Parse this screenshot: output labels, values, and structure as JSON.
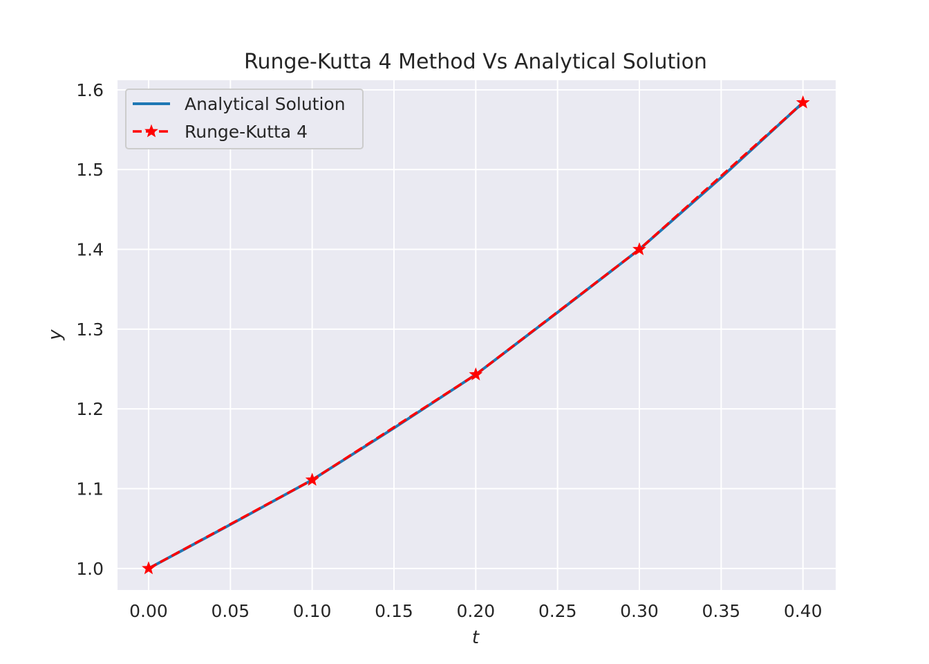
{
  "chart_data": {
    "type": "line",
    "title": "Runge-Kutta 4 Method Vs Analytical Solution",
    "xlabel": "t",
    "ylabel": "y",
    "xlim": [
      -0.019,
      0.42
    ],
    "ylim": [
      0.973,
      1.612
    ],
    "x_ticks": [
      "0.00",
      "0.05",
      "0.10",
      "0.15",
      "0.20",
      "0.25",
      "0.30",
      "0.35",
      "0.40"
    ],
    "y_ticks": [
      "1.0",
      "1.1",
      "1.2",
      "1.3",
      "1.4",
      "1.5",
      "1.6"
    ],
    "grid": true,
    "legend_position": "top-left",
    "background": "#eaeaf2",
    "series": [
      {
        "name": "Analytical Solution",
        "color": "#1f77b4",
        "style": "solid",
        "x": [
          0.0,
          0.05,
          0.1,
          0.15,
          0.2,
          0.25,
          0.3,
          0.35,
          0.4
        ],
        "y": [
          1.0,
          1.055,
          1.111,
          1.176,
          1.243,
          1.321,
          1.4,
          1.49,
          1.584
        ]
      },
      {
        "name": "Runge-Kutta 4",
        "color": "#ff0000",
        "style": "dashed",
        "marker": "star",
        "x": [
          0.0,
          0.1,
          0.2,
          0.3,
          0.4
        ],
        "y": [
          1.0,
          1.111,
          1.243,
          1.4,
          1.584
        ]
      }
    ]
  }
}
